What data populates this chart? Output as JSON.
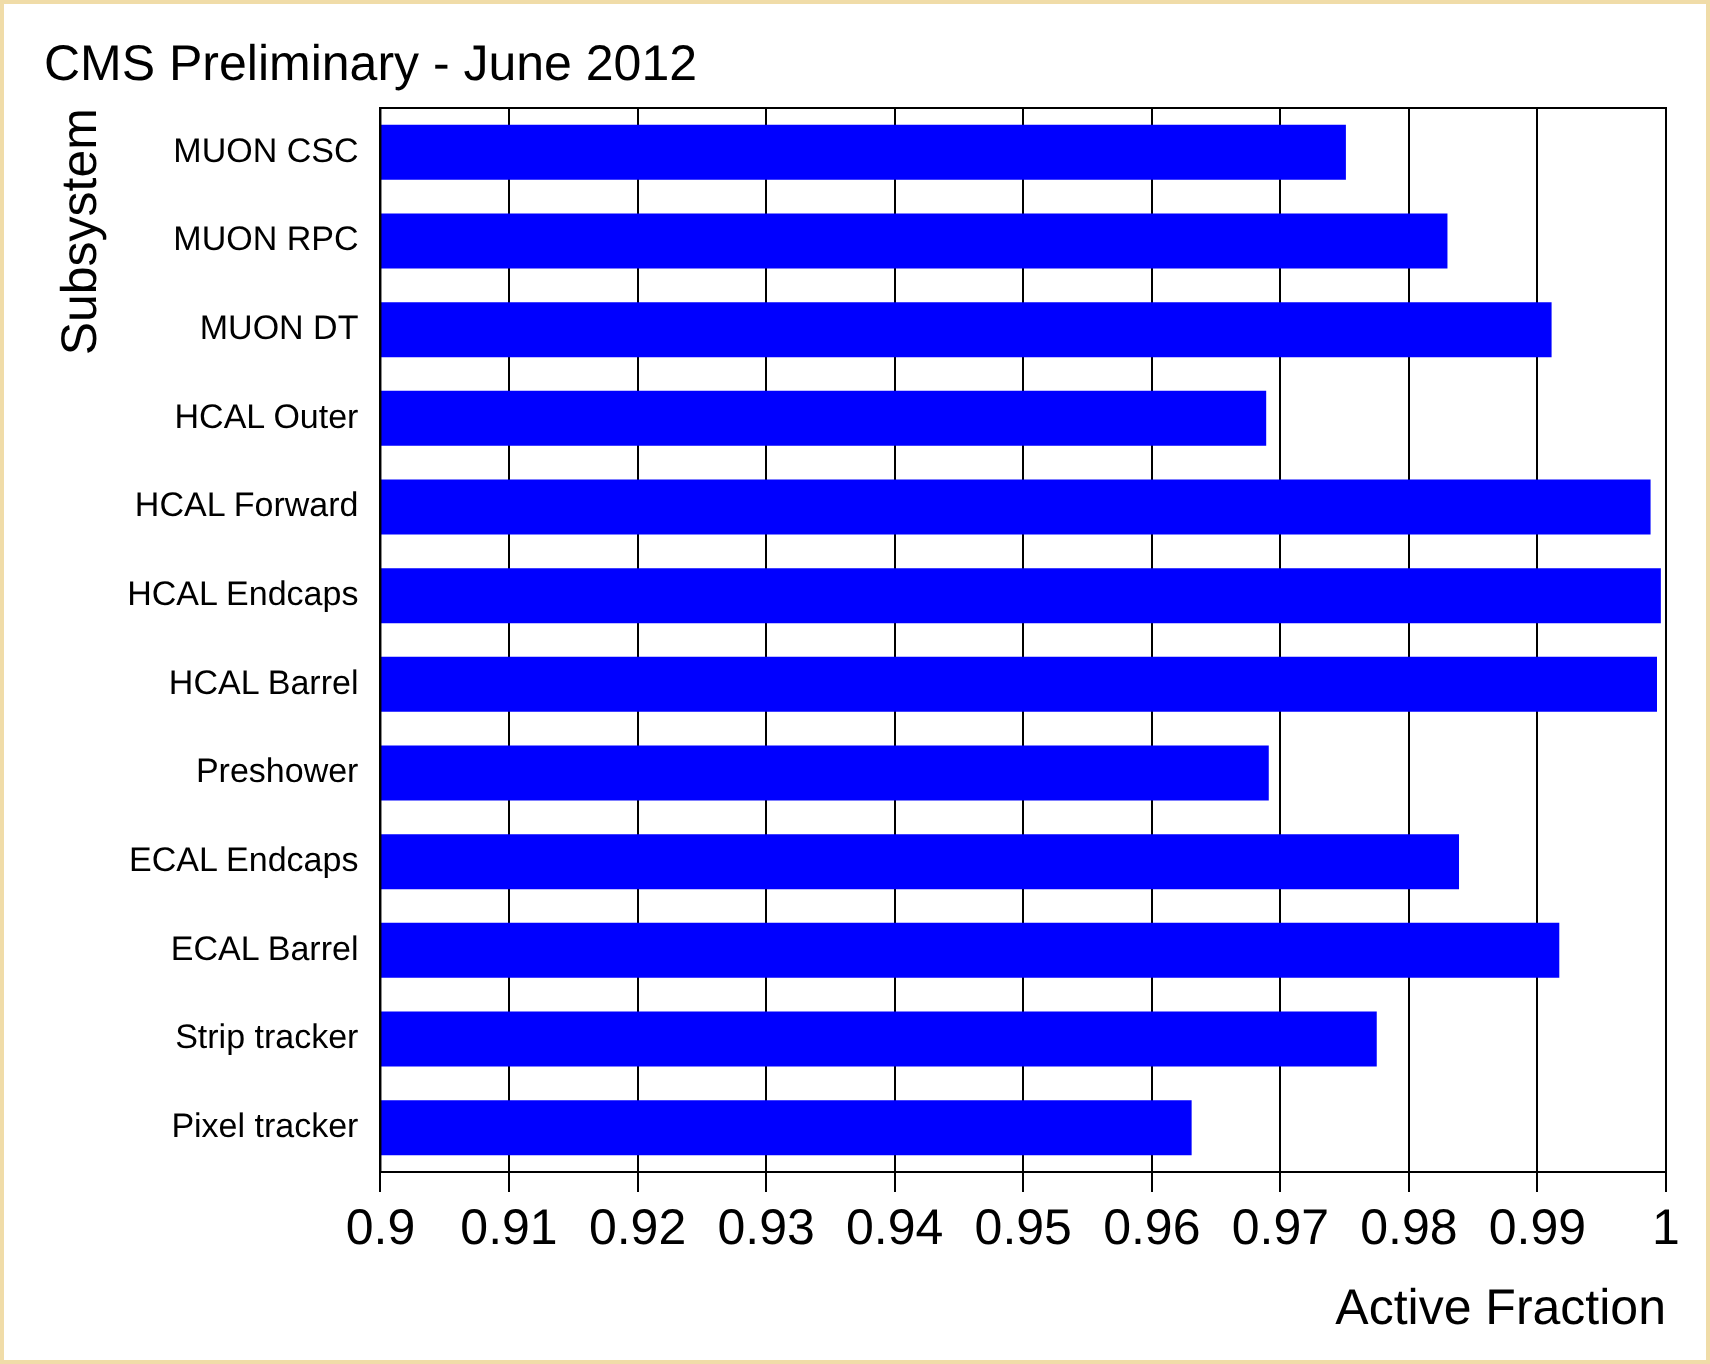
{
  "chart_data": {
    "type": "bar",
    "orientation": "horizontal",
    "title": "CMS Preliminary - June 2012",
    "xlabel": "Active Fraction",
    "ylabel": "Subsystem",
    "categories": [
      "MUON CSC",
      "MUON RPC",
      "MUON DT",
      "HCAL Outer",
      "HCAL Forward",
      "HCAL Endcaps",
      "HCAL Barrel",
      "Preshower",
      "ECAL Endcaps",
      "ECAL Barrel",
      "Strip tracker",
      "Pixel tracker"
    ],
    "values": [
      0.9751,
      0.983,
      0.9911,
      0.9689,
      0.9988,
      0.9996,
      0.9993,
      0.9691,
      0.9839,
      0.9917,
      0.9775,
      0.9631
    ],
    "color": "#0000ff",
    "xlim": [
      0.9,
      1
    ],
    "xticks": [
      0.9,
      0.91,
      0.92,
      0.93,
      0.94,
      0.95,
      0.96,
      0.97,
      0.98,
      0.99,
      1
    ],
    "grid": "x"
  }
}
